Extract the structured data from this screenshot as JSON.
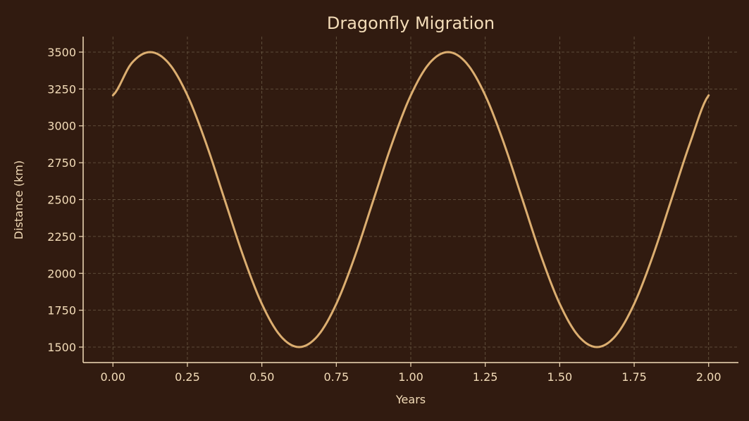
{
  "colors": {
    "background": "#311b10",
    "text": "#f3dcb8",
    "line": "#dcae70",
    "axis": "#f3dcb8",
    "grid": "#6a5a44"
  },
  "chart_data": {
    "type": "line",
    "title": "Dragonfly Migration",
    "xlabel": "Years",
    "ylabel": "Distance (km)",
    "xlim": [
      -0.1,
      2.1
    ],
    "ylim": [
      1395,
      3605
    ],
    "grid": true,
    "legend": "none",
    "x_ticks": [
      0.0,
      0.25,
      0.5,
      0.75,
      1.0,
      1.25,
      1.5,
      1.75,
      2.0
    ],
    "x_tick_labels": [
      "0.00",
      "0.25",
      "0.50",
      "0.75",
      "1.00",
      "1.25",
      "1.50",
      "1.75",
      "2.00"
    ],
    "y_ticks": [
      1500,
      1750,
      2000,
      2250,
      2500,
      2750,
      3000,
      3250,
      3500
    ],
    "y_tick_labels": [
      "1500",
      "1750",
      "2000",
      "2250",
      "2500",
      "2750",
      "3000",
      "3250",
      "3500"
    ],
    "series": [
      {
        "x": [
          0.0,
          0.0625,
          0.125,
          0.1875,
          0.25,
          0.3125,
          0.375,
          0.4375,
          0.5,
          0.5625,
          0.625,
          0.6875,
          0.75,
          0.8125,
          0.875,
          0.9375,
          1.0,
          1.0625,
          1.125,
          1.1875,
          1.25,
          1.3125,
          1.375,
          1.4375,
          1.5,
          1.5625,
          1.625,
          1.6875,
          1.75,
          1.8125,
          1.875,
          1.9375,
          2.0
        ],
        "y": [
          3207,
          3424,
          3500,
          3424,
          3207,
          2883,
          2500,
          2117,
          1793,
          1576,
          1500,
          1576,
          1793,
          2117,
          2500,
          2883,
          3207,
          3424,
          3500,
          3424,
          3207,
          2883,
          2500,
          2117,
          1793,
          1576,
          1500,
          1576,
          1793,
          2117,
          2500,
          2883,
          3207
        ]
      }
    ]
  }
}
